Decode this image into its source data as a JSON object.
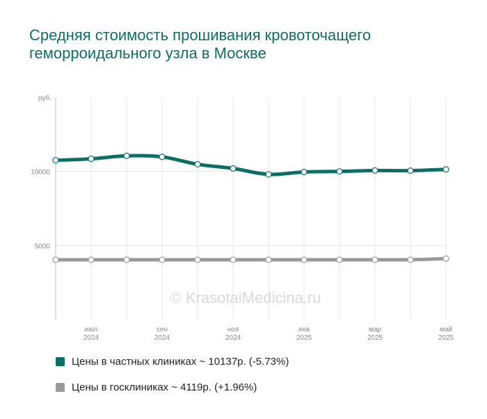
{
  "chart_data": {
    "type": "line",
    "title": "Средняя стоимость прошивания кровоточащего геморроидального узла в Москве",
    "ylabel": "руб.",
    "ylim": [
      0,
      15000
    ],
    "yticks": [
      {
        "value": 10000,
        "label": "10000"
      },
      {
        "value": 5000,
        "label": "5000"
      }
    ],
    "x": [
      "2024-06",
      "2024-07",
      "2024-08",
      "2024-09",
      "2024-10",
      "2024-11",
      "2024-12",
      "2025-01",
      "2025-02",
      "2025-03",
      "2025-04",
      "2025-05"
    ],
    "xticks": [
      {
        "index": 1,
        "month": "июл",
        "year": "2024"
      },
      {
        "index": 3,
        "month": "сен",
        "year": "2024"
      },
      {
        "index": 5,
        "month": "ноя",
        "year": "2024"
      },
      {
        "index": 7,
        "month": "янв",
        "year": "2025"
      },
      {
        "index": 9,
        "month": "мар",
        "year": "2025"
      },
      {
        "index": 11,
        "month": "май",
        "year": "2025"
      }
    ],
    "series": [
      {
        "name": "Цены в частных клиниках ~ 10137р. (-5.73%)",
        "color": "#0c6e65",
        "values": [
          10750,
          10850,
          11050,
          10980,
          10480,
          10200,
          9800,
          9960,
          10000,
          10060,
          10050,
          10137
        ]
      },
      {
        "name": "Цены в госклиниках ~ 4119р. (+1.96%)",
        "color": "#999999",
        "values": [
          4040,
          4040,
          4040,
          4040,
          4040,
          4040,
          4040,
          4040,
          4040,
          4040,
          4040,
          4119
        ]
      }
    ],
    "grid": true,
    "legend": "bottom"
  },
  "watermark": "© KrasotaiMedicina.ru"
}
